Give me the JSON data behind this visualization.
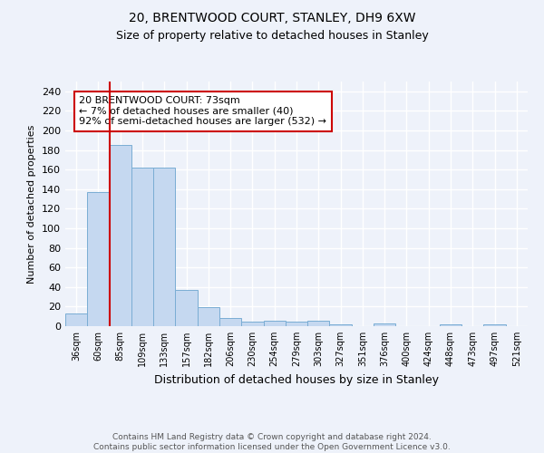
{
  "title1": "20, BRENTWOOD COURT, STANLEY, DH9 6XW",
  "title2": "Size of property relative to detached houses in Stanley",
  "xlabel": "Distribution of detached houses by size in Stanley",
  "ylabel": "Number of detached properties",
  "categories": [
    "36sqm",
    "60sqm",
    "85sqm",
    "109sqm",
    "133sqm",
    "157sqm",
    "182sqm",
    "206sqm",
    "230sqm",
    "254sqm",
    "279sqm",
    "303sqm",
    "327sqm",
    "351sqm",
    "376sqm",
    "400sqm",
    "424sqm",
    "448sqm",
    "473sqm",
    "497sqm",
    "521sqm"
  ],
  "values": [
    13,
    137,
    185,
    162,
    162,
    37,
    19,
    8,
    5,
    6,
    5,
    6,
    2,
    0,
    3,
    0,
    0,
    2,
    0,
    2,
    0
  ],
  "bar_color": "#c5d8f0",
  "bar_edge_color": "#7aadd4",
  "vline_color": "#cc0000",
  "vline_x": 1.5,
  "annotation_text": "20 BRENTWOOD COURT: 73sqm\n← 7% of detached houses are smaller (40)\n92% of semi-detached houses are larger (532) →",
  "annotation_box_color": "white",
  "annotation_box_edge_color": "#cc0000",
  "ylim": [
    0,
    250
  ],
  "yticks": [
    0,
    20,
    40,
    60,
    80,
    100,
    120,
    140,
    160,
    180,
    200,
    220,
    240
  ],
  "footer_text": "Contains HM Land Registry data © Crown copyright and database right 2024.\nContains public sector information licensed under the Open Government Licence v3.0.",
  "background_color": "#eef2fa",
  "grid_color": "#ffffff"
}
